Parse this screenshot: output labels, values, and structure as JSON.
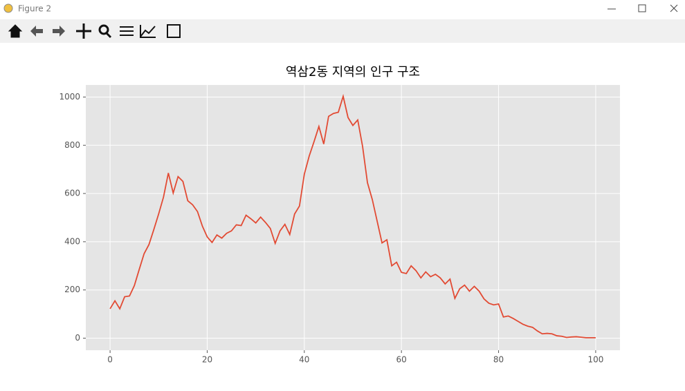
{
  "window": {
    "title": "Figure 2"
  },
  "chart_data": {
    "type": "line",
    "title": "역삼2동 지역의 인구 구조",
    "color": "#e24a33",
    "grid": true,
    "x": [
      0,
      1,
      2,
      3,
      4,
      5,
      6,
      7,
      8,
      9,
      10,
      11,
      12,
      13,
      14,
      15,
      16,
      17,
      18,
      19,
      20,
      21,
      22,
      23,
      24,
      25,
      26,
      27,
      28,
      29,
      30,
      31,
      32,
      33,
      34,
      35,
      36,
      37,
      38,
      39,
      40,
      41,
      42,
      43,
      44,
      45,
      46,
      47,
      48,
      49,
      50,
      51,
      52,
      53,
      54,
      55,
      56,
      57,
      58,
      59,
      60,
      61,
      62,
      63,
      64,
      65,
      66,
      67,
      68,
      69,
      70,
      71,
      72,
      73,
      74,
      75,
      76,
      77,
      78,
      79,
      80,
      81,
      82,
      83,
      84,
      85,
      86,
      87,
      88,
      89,
      90,
      91,
      92,
      93,
      94,
      95,
      96,
      97,
      98,
      99,
      100
    ],
    "values": [
      122,
      155,
      122,
      172,
      175,
      218,
      285,
      350,
      388,
      450,
      515,
      585,
      685,
      602,
      670,
      650,
      570,
      553,
      525,
      465,
      420,
      397,
      428,
      415,
      435,
      445,
      470,
      467,
      510,
      495,
      478,
      502,
      480,
      455,
      393,
      445,
      472,
      430,
      515,
      548,
      680,
      755,
      815,
      878,
      805,
      920,
      932,
      937,
      1003,
      915,
      882,
      905,
      795,
      645,
      575,
      485,
      395,
      408,
      300,
      315,
      273,
      268,
      300,
      280,
      250,
      275,
      255,
      265,
      250,
      225,
      245,
      165,
      205,
      220,
      195,
      215,
      195,
      163,
      145,
      138,
      142,
      88,
      92,
      82,
      70,
      58,
      50,
      45,
      30,
      18,
      20,
      18,
      10,
      8,
      3,
      5,
      6,
      4,
      2,
      2,
      2
    ],
    "xlim": [
      -5,
      105
    ],
    "ylim": [
      -50,
      1050
    ],
    "xticks": [
      0,
      20,
      40,
      60,
      80,
      100
    ],
    "yticks": [
      0,
      200,
      400,
      600,
      800,
      1000
    ]
  }
}
